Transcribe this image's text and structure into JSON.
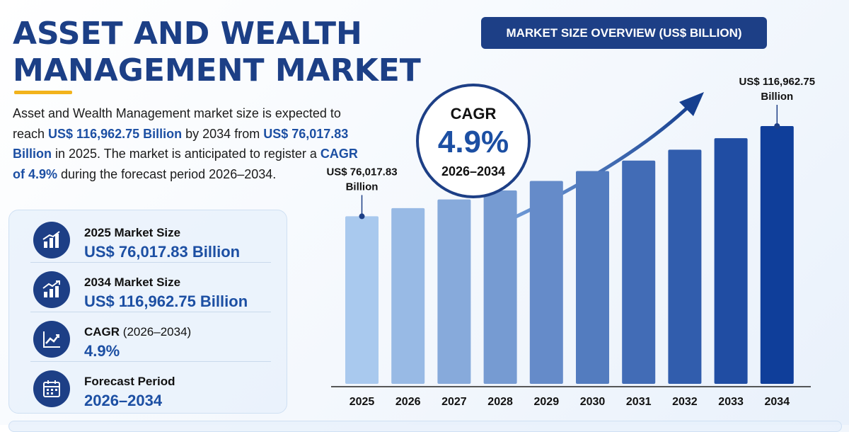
{
  "title": {
    "line1": "ASSET AND WEALTH",
    "line2": "MANAGEMENT MARKET"
  },
  "description": {
    "p1": "Asset and Wealth Management market size is expected to reach ",
    "b1": "US$ 116,962.75 Billion",
    "p2": " by 2034 from ",
    "b2": "US$ 76,017.83 Billion",
    "p3": " in 2025. The market is anticipated to register a ",
    "b3": "CAGR of 4.9%",
    "p4": " during the forecast period 2026–2034."
  },
  "kpis": [
    {
      "label": "2025 Market Size",
      "value": "US$ 76,017.83 Billion",
      "icon": "bar-chart-icon"
    },
    {
      "label": "2034 Market Size",
      "value": "US$ 116,962.75 Billion",
      "icon": "growth-chart-icon"
    },
    {
      "label": "CAGR",
      "label_suffix": " (2026–2034)",
      "value": "4.9%",
      "icon": "trend-line-icon"
    },
    {
      "label": "Forecast Period",
      "value": "2026–2034",
      "icon": "calendar-icon"
    }
  ],
  "banner": "MARKET SIZE OVERVIEW (US$ BILLION)",
  "cagr_badge": {
    "label": "CAGR",
    "value": "4.9%",
    "period": "2026–2034"
  },
  "colors": {
    "navy": "#1d3f86",
    "accent_blue": "#1c4fa3",
    "gold": "#f2b31c",
    "bar_light": "#a9c9ee",
    "bar_dark": "#0f3e9a"
  },
  "chart_data": {
    "type": "bar",
    "categories": [
      "2025",
      "2026",
      "2027",
      "2028",
      "2029",
      "2030",
      "2031",
      "2032",
      "2033",
      "2034"
    ],
    "values": [
      76017.83,
      79742.7,
      83650.1,
      87749.0,
      92048.7,
      96559.1,
      101290.5,
      106253.7,
      111460.2,
      116962.75
    ],
    "annotations": [
      {
        "category": "2025",
        "line1": "US$ 76,017.83",
        "line2": "Billion"
      },
      {
        "category": "2034",
        "line1": "US$ 116,962.75",
        "line2": "Billion"
      }
    ],
    "title": "MARKET SIZE OVERVIEW (US$ BILLION)",
    "xlabel": "",
    "ylabel": "",
    "grid": false,
    "legend": "none"
  }
}
